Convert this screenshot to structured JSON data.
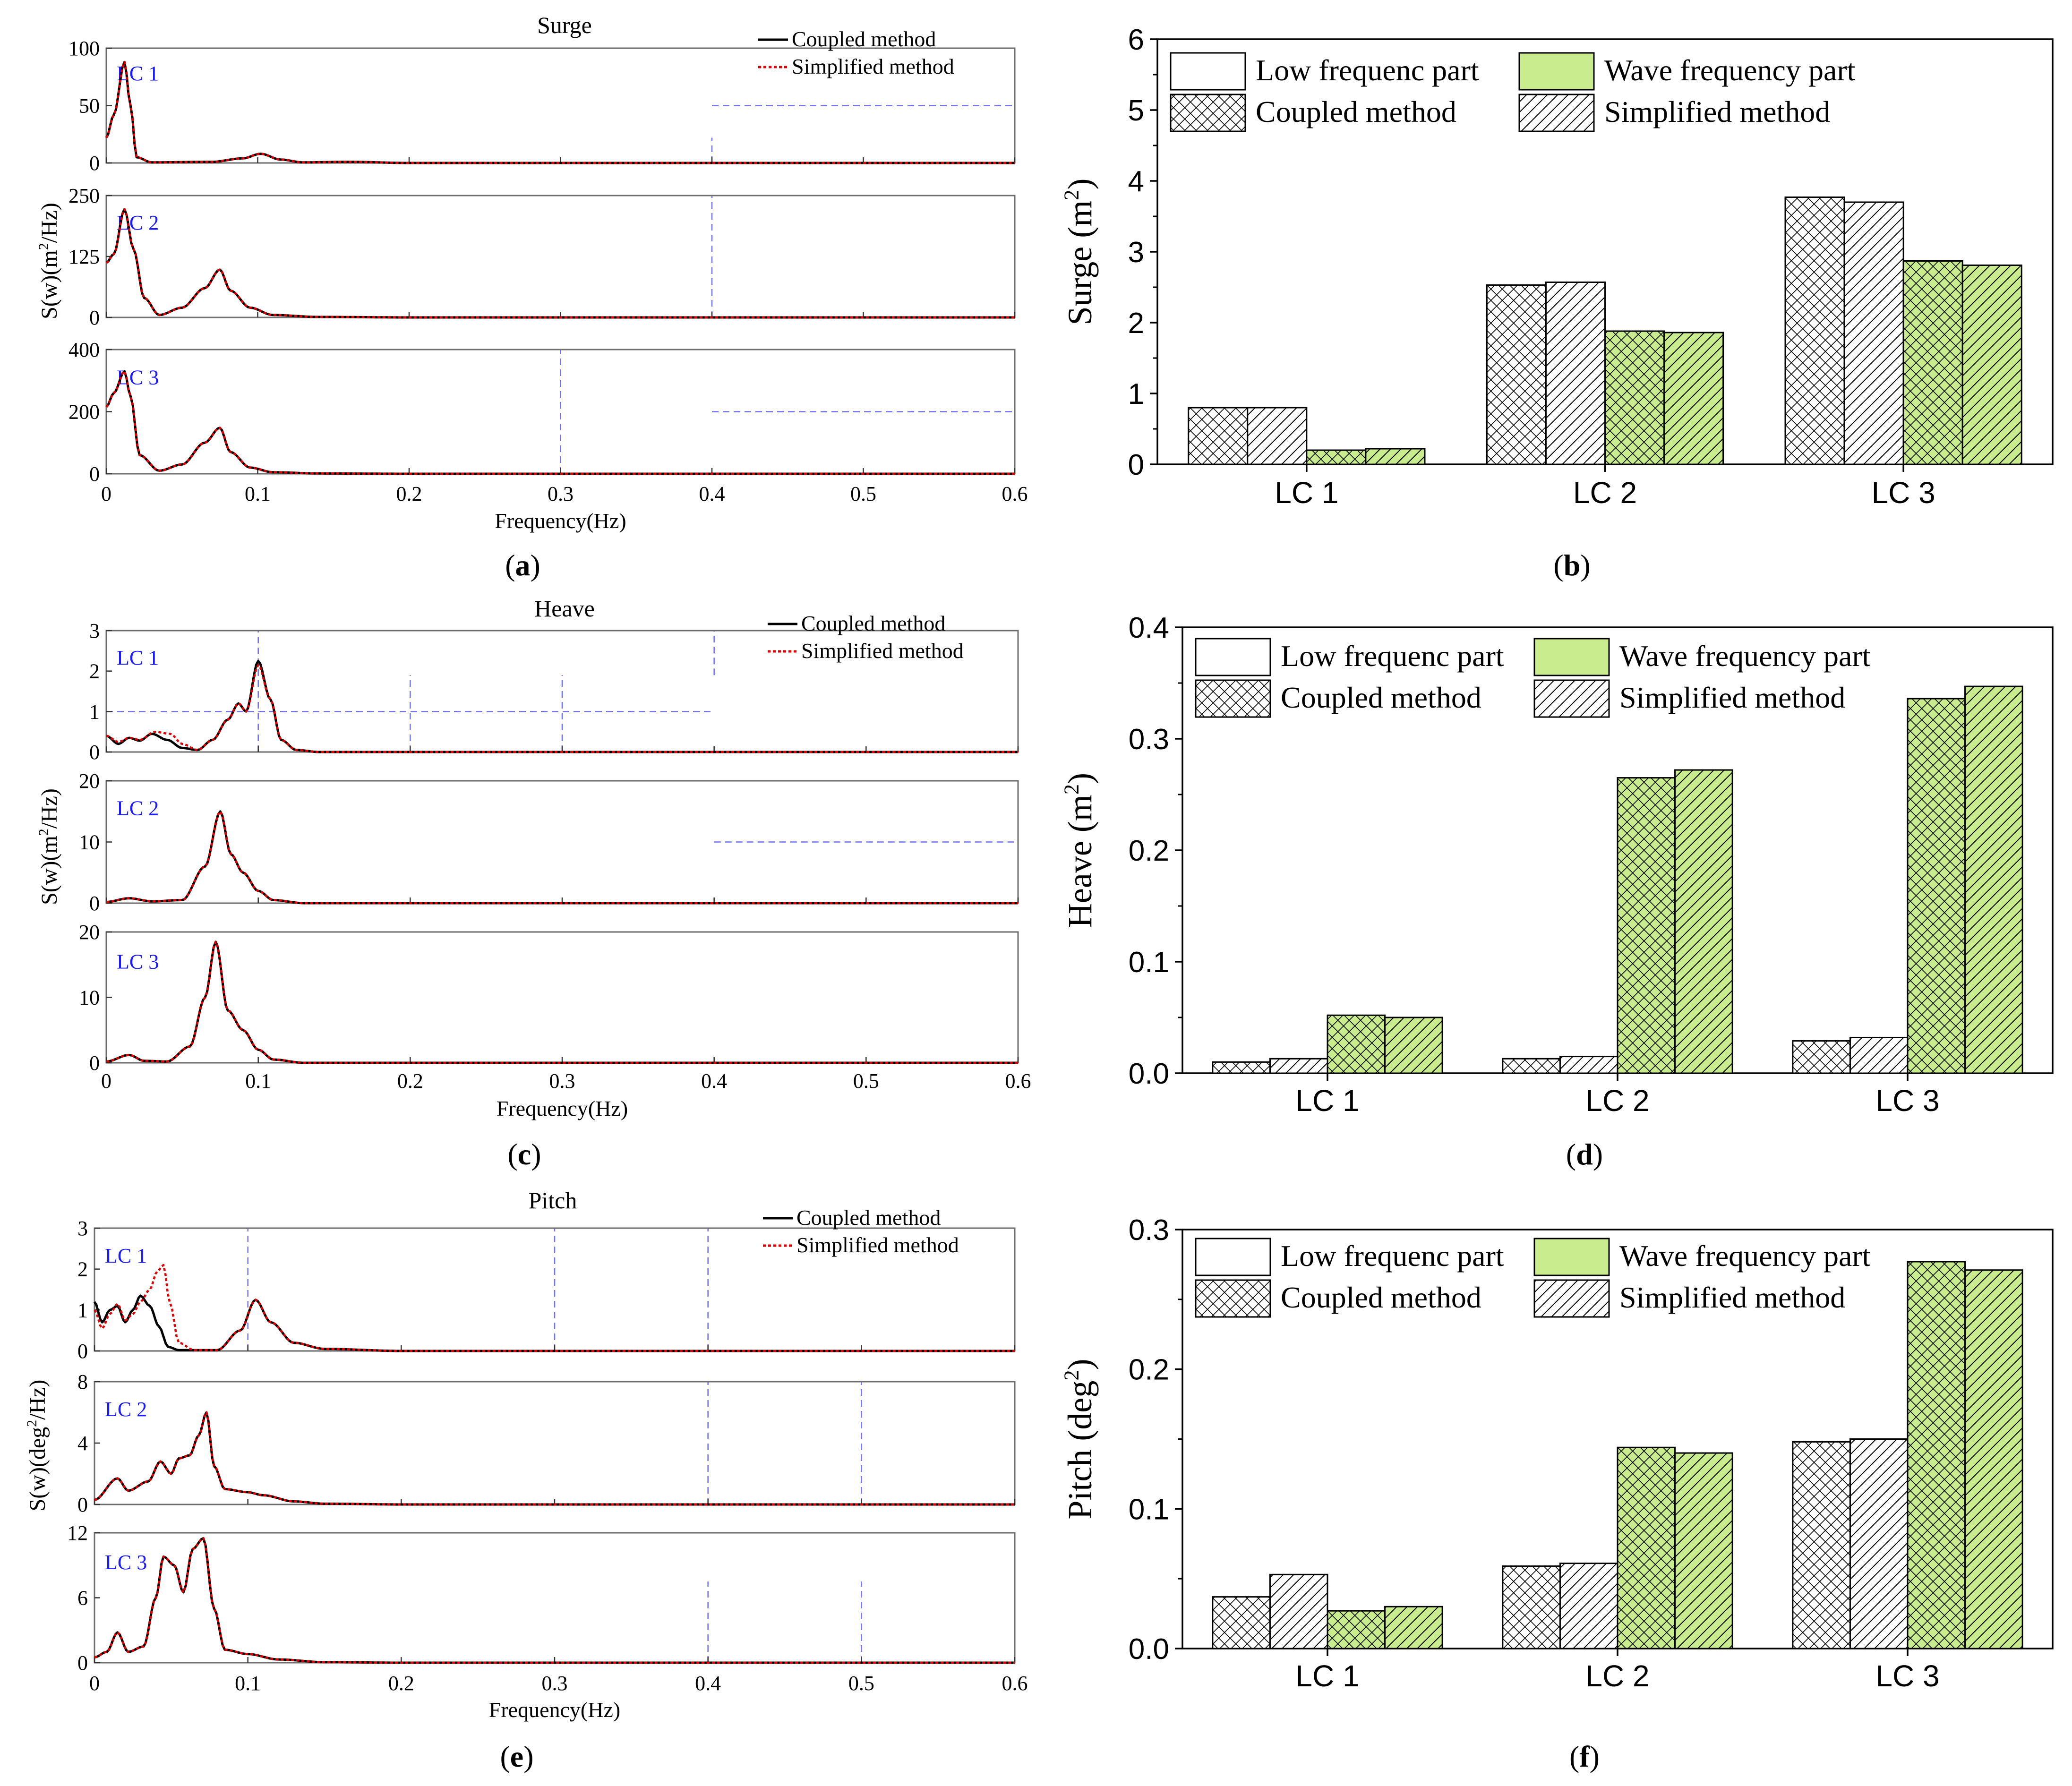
{
  "figure": {
    "spectrum_colors": {
      "coupled": "#000000",
      "simplified": "#e00000",
      "label": "#1a1aff",
      "guide": "#6f6fff"
    },
    "bar_colors": {
      "green": "#c9ec8f",
      "white": "#ffffff",
      "edge": "#000000"
    }
  },
  "chart_data": [
    {
      "id": "a",
      "type": "line",
      "title": "Surge",
      "panel_label": "a",
      "xlabel": "Frequency(Hz)",
      "ylabel": "S(w)(m²/Hz)",
      "xlim": [
        0,
        0.6
      ],
      "x_ticks": [
        "0",
        "0.1",
        "0.2",
        "0.3",
        "0.4",
        "0.5",
        "0.6"
      ],
      "legend": [
        "Coupled method",
        "Simplified method"
      ],
      "subplots": [
        {
          "label": "LC 1",
          "ylim": [
            0,
            100
          ],
          "y_ticks": [
            "0",
            "50",
            "100"
          ],
          "peaks": [
            [
              0.0,
              22
            ],
            [
              0.005,
              42
            ],
            [
              0.012,
              88
            ],
            [
              0.016,
              50
            ],
            [
              0.02,
              5
            ],
            [
              0.03,
              0.5
            ],
            [
              0.07,
              1
            ],
            [
              0.09,
              4
            ],
            [
              0.102,
              8
            ],
            [
              0.115,
              3
            ],
            [
              0.13,
              0.5
            ],
            [
              0.16,
              1
            ],
            [
              0.2,
              0
            ],
            [
              0.6,
              0
            ]
          ]
        },
        {
          "label": "LC 2",
          "ylim": [
            0,
            250
          ],
          "y_ticks": [
            "0",
            "125",
            "250"
          ],
          "peaks": [
            [
              0.0,
              112
            ],
            [
              0.005,
              130
            ],
            [
              0.012,
              222
            ],
            [
              0.018,
              140
            ],
            [
              0.025,
              40
            ],
            [
              0.035,
              5
            ],
            [
              0.05,
              20
            ],
            [
              0.065,
              60
            ],
            [
              0.075,
              98
            ],
            [
              0.082,
              55
            ],
            [
              0.095,
              20
            ],
            [
              0.11,
              5
            ],
            [
              0.14,
              1
            ],
            [
              0.2,
              0
            ],
            [
              0.6,
              0
            ]
          ]
        },
        {
          "label": "LC 3",
          "ylim": [
            0,
            400
          ],
          "y_ticks": [
            "0",
            "200",
            "400"
          ],
          "peaks": [
            [
              0.0,
              215
            ],
            [
              0.005,
              260
            ],
            [
              0.012,
              330
            ],
            [
              0.016,
              250
            ],
            [
              0.022,
              60
            ],
            [
              0.035,
              10
            ],
            [
              0.05,
              30
            ],
            [
              0.065,
              100
            ],
            [
              0.075,
              148
            ],
            [
              0.082,
              70
            ],
            [
              0.095,
              20
            ],
            [
              0.11,
              5
            ],
            [
              0.14,
              1
            ],
            [
              0.2,
              0
            ],
            [
              0.6,
              0
            ]
          ]
        }
      ],
      "diverge": []
    },
    {
      "id": "c",
      "type": "line",
      "title": "Heave",
      "panel_label": "c",
      "xlabel": "Frequency(Hz)",
      "ylabel": "S(w)(m²/Hz)",
      "xlim": [
        0,
        0.6
      ],
      "x_ticks": [
        "0",
        "0.1",
        "0.2",
        "0.3",
        "0.4",
        "0.5",
        "0.6"
      ],
      "legend": [
        "Coupled method",
        "Simplified method"
      ],
      "subplots": [
        {
          "label": "LC 1",
          "ylim": [
            0,
            3
          ],
          "y_ticks": [
            "0",
            "1",
            "2",
            "3"
          ],
          "peaks": [
            [
              0.0,
              0.4
            ],
            [
              0.008,
              0.2
            ],
            [
              0.015,
              0.35
            ],
            [
              0.022,
              0.28
            ],
            [
              0.03,
              0.45
            ],
            [
              0.04,
              0.3
            ],
            [
              0.05,
              0.1
            ],
            [
              0.06,
              0.05
            ],
            [
              0.07,
              0.3
            ],
            [
              0.08,
              0.8
            ],
            [
              0.087,
              1.2
            ],
            [
              0.092,
              1.0
            ],
            [
              0.1,
              2.25
            ],
            [
              0.108,
              1.3
            ],
            [
              0.115,
              0.3
            ],
            [
              0.125,
              0.05
            ],
            [
              0.14,
              0
            ],
            [
              0.6,
              0
            ]
          ]
        },
        {
          "label": "LC 2",
          "ylim": [
            0,
            20
          ],
          "y_ticks": [
            "0",
            "10",
            "20"
          ],
          "peaks": [
            [
              0.0,
              0.2
            ],
            [
              0.015,
              0.8
            ],
            [
              0.03,
              0.3
            ],
            [
              0.05,
              0.5
            ],
            [
              0.065,
              6
            ],
            [
              0.075,
              15
            ],
            [
              0.082,
              8
            ],
            [
              0.09,
              5
            ],
            [
              0.1,
              2
            ],
            [
              0.11,
              0.5
            ],
            [
              0.13,
              0
            ],
            [
              0.6,
              0
            ]
          ]
        },
        {
          "label": "LC 3",
          "ylim": [
            0,
            20
          ],
          "y_ticks": [
            "0",
            "10",
            "20"
          ],
          "peaks": [
            [
              0.0,
              0.2
            ],
            [
              0.015,
              1.2
            ],
            [
              0.025,
              0.3
            ],
            [
              0.04,
              0.2
            ],
            [
              0.055,
              2.5
            ],
            [
              0.065,
              10
            ],
            [
              0.072,
              18.5
            ],
            [
              0.08,
              8
            ],
            [
              0.09,
              5
            ],
            [
              0.1,
              2
            ],
            [
              0.11,
              0.5
            ],
            [
              0.13,
              0
            ],
            [
              0.6,
              0
            ]
          ]
        }
      ],
      "diverge": [
        {
          "subplot": 0,
          "points": [
            [
              0.0,
              0.4
            ],
            [
              0.008,
              0.25
            ],
            [
              0.015,
              0.35
            ],
            [
              0.022,
              0.3
            ],
            [
              0.032,
              0.5
            ],
            [
              0.042,
              0.45
            ],
            [
              0.05,
              0.2
            ],
            [
              0.06,
              0.05
            ],
            [
              0.07,
              0.3
            ],
            [
              0.08,
              0.8
            ],
            [
              0.087,
              1.2
            ],
            [
              0.092,
              1.0
            ],
            [
              0.1,
              2.15
            ],
            [
              0.108,
              1.3
            ],
            [
              0.115,
              0.3
            ],
            [
              0.125,
              0.05
            ],
            [
              0.14,
              0
            ],
            [
              0.6,
              0
            ]
          ]
        }
      ]
    },
    {
      "id": "e",
      "type": "line",
      "title": "Pitch",
      "panel_label": "e",
      "xlabel": "Frequency(Hz)",
      "ylabel": "S(w)(deg²/Hz)",
      "xlim": [
        0,
        0.6
      ],
      "x_ticks": [
        "0",
        "0.1",
        "0.2",
        "0.3",
        "0.4",
        "0.5",
        "0.6"
      ],
      "legend": [
        "Coupled method",
        "Simplified method"
      ],
      "subplots": [
        {
          "label": "LC 1",
          "ylim": [
            0,
            3
          ],
          "y_ticks": [
            "0",
            "1",
            "2",
            "3"
          ],
          "peaks": [
            [
              0.0,
              1.2
            ],
            [
              0.005,
              0.7
            ],
            [
              0.01,
              1.0
            ],
            [
              0.015,
              1.1
            ],
            [
              0.02,
              0.7
            ],
            [
              0.025,
              1.0
            ],
            [
              0.03,
              1.35
            ],
            [
              0.036,
              1.1
            ],
            [
              0.042,
              0.6
            ],
            [
              0.048,
              0.1
            ],
            [
              0.055,
              0.02
            ],
            [
              0.08,
              0.02
            ],
            [
              0.095,
              0.5
            ],
            [
              0.105,
              1.25
            ],
            [
              0.115,
              0.7
            ],
            [
              0.13,
              0.2
            ],
            [
              0.15,
              0.05
            ],
            [
              0.2,
              0
            ],
            [
              0.6,
              0
            ]
          ]
        },
        {
          "label": "LC 2",
          "ylim": [
            0,
            8
          ],
          "y_ticks": [
            "0",
            "4",
            "8"
          ],
          "peaks": [
            [
              0.0,
              0.3
            ],
            [
              0.015,
              1.7
            ],
            [
              0.022,
              0.9
            ],
            [
              0.035,
              1.5
            ],
            [
              0.043,
              2.8
            ],
            [
              0.05,
              2.0
            ],
            [
              0.055,
              3.0
            ],
            [
              0.062,
              3.2
            ],
            [
              0.068,
              4.5
            ],
            [
              0.073,
              6.0
            ],
            [
              0.078,
              2.5
            ],
            [
              0.085,
              1.0
            ],
            [
              0.1,
              0.8
            ],
            [
              0.11,
              0.6
            ],
            [
              0.13,
              0.2
            ],
            [
              0.15,
              0.05
            ],
            [
              0.2,
              0
            ],
            [
              0.6,
              0
            ]
          ]
        },
        {
          "label": "LC 3",
          "ylim": [
            0,
            12
          ],
          "y_ticks": [
            "0",
            "6",
            "12"
          ],
          "peaks": [
            [
              0.0,
              0.5
            ],
            [
              0.008,
              1.0
            ],
            [
              0.015,
              2.8
            ],
            [
              0.022,
              1.0
            ],
            [
              0.032,
              1.5
            ],
            [
              0.04,
              6
            ],
            [
              0.045,
              9.8
            ],
            [
              0.052,
              9.0
            ],
            [
              0.058,
              6.5
            ],
            [
              0.064,
              10.5
            ],
            [
              0.071,
              11.5
            ],
            [
              0.078,
              5
            ],
            [
              0.085,
              1.2
            ],
            [
              0.1,
              0.8
            ],
            [
              0.12,
              0.3
            ],
            [
              0.15,
              0.05
            ],
            [
              0.2,
              0
            ],
            [
              0.6,
              0
            ]
          ]
        }
      ],
      "diverge": [
        {
          "subplot": 0,
          "points": [
            [
              0.0,
              1.0
            ],
            [
              0.005,
              0.55
            ],
            [
              0.01,
              0.9
            ],
            [
              0.015,
              1.15
            ],
            [
              0.02,
              0.75
            ],
            [
              0.025,
              0.9
            ],
            [
              0.03,
              1.2
            ],
            [
              0.036,
              1.5
            ],
            [
              0.041,
              1.95
            ],
            [
              0.045,
              2.1
            ],
            [
              0.049,
              1.2
            ],
            [
              0.055,
              0.2
            ],
            [
              0.065,
              0.02
            ],
            [
              0.08,
              0.02
            ],
            [
              0.095,
              0.5
            ],
            [
              0.105,
              1.25
            ],
            [
              0.115,
              0.7
            ],
            [
              0.13,
              0.2
            ],
            [
              0.15,
              0.05
            ],
            [
              0.2,
              0
            ],
            [
              0.6,
              0
            ]
          ]
        }
      ]
    },
    {
      "id": "b",
      "type": "bar",
      "panel_label": "b",
      "ylabel": "Surge (m²)",
      "ylim": [
        0,
        6
      ],
      "y_ticks": [
        "0",
        "1",
        "2",
        "3",
        "4",
        "5",
        "6"
      ],
      "categories": [
        "LC 1",
        "LC 2",
        "LC 3"
      ],
      "legend": [
        "Low frequenc part",
        "Wave frequency part",
        "Coupled method",
        "Simplified method"
      ],
      "series": [
        {
          "name": "Low frequency, Coupled",
          "values": [
            0.8,
            2.53,
            3.77
          ]
        },
        {
          "name": "Low frequency, Simplified",
          "values": [
            0.8,
            2.57,
            3.7
          ]
        },
        {
          "name": "Wave frequency, Coupled",
          "values": [
            0.2,
            1.88,
            2.87
          ]
        },
        {
          "name": "Wave frequency, Simplified",
          "values": [
            0.22,
            1.86,
            2.81
          ]
        }
      ]
    },
    {
      "id": "d",
      "type": "bar",
      "panel_label": "d",
      "ylabel": "Heave (m²)",
      "ylim": [
        0,
        0.4
      ],
      "y_ticks": [
        "0.0",
        "0.1",
        "0.2",
        "0.3",
        "0.4"
      ],
      "categories": [
        "LC 1",
        "LC 2",
        "LC 3"
      ],
      "legend": [
        "Low frequenc part",
        "Wave frequency part",
        "Coupled method",
        "Simplified method"
      ],
      "series": [
        {
          "name": "Low frequency, Coupled",
          "values": [
            0.01,
            0.013,
            0.029
          ]
        },
        {
          "name": "Low frequency, Simplified",
          "values": [
            0.013,
            0.015,
            0.032
          ]
        },
        {
          "name": "Wave frequency, Coupled",
          "values": [
            0.052,
            0.265,
            0.336
          ]
        },
        {
          "name": "Wave frequency, Simplified",
          "values": [
            0.05,
            0.272,
            0.347
          ]
        }
      ]
    },
    {
      "id": "f",
      "type": "bar",
      "panel_label": "f",
      "ylabel": "Pitch (deg²)",
      "ylim": [
        0,
        0.3
      ],
      "y_ticks": [
        "0.0",
        "0.1",
        "0.2",
        "0.3"
      ],
      "categories": [
        "LC 1",
        "LC 2",
        "LC 3"
      ],
      "legend": [
        "Low frequenc part",
        "Wave frequency part",
        "Coupled method",
        "Simplified method"
      ],
      "series": [
        {
          "name": "Low frequency, Coupled",
          "values": [
            0.037,
            0.059,
            0.148
          ]
        },
        {
          "name": "Low frequency, Simplified",
          "values": [
            0.053,
            0.061,
            0.15
          ]
        },
        {
          "name": "Wave frequency, Coupled",
          "values": [
            0.027,
            0.144,
            0.277
          ]
        },
        {
          "name": "Wave frequency, Simplified",
          "values": [
            0.03,
            0.14,
            0.271
          ]
        }
      ]
    }
  ]
}
